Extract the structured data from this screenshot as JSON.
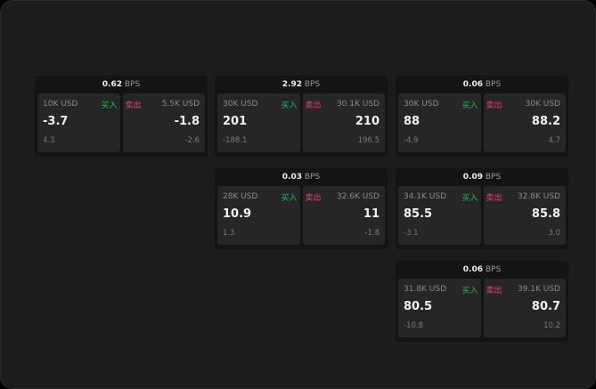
{
  "unit_label": "BPS",
  "buy_label": "买入",
  "sell_label": "卖出",
  "colors": {
    "buy": "#2fb45f",
    "sell": "#e0457a"
  },
  "panels": [
    {
      "bps": "0.62",
      "buy": {
        "size": "10K USD",
        "price": "-3.7",
        "change": "4.3"
      },
      "sell": {
        "size": "5.5K USD",
        "price": "-1.8",
        "change": "-2.6"
      }
    },
    {
      "bps": "2.92",
      "buy": {
        "size": "30K USD",
        "price": "201",
        "change": "-188.1"
      },
      "sell": {
        "size": "30.1K USD",
        "price": "210",
        "change": "196.5"
      }
    },
    {
      "bps": "0.06",
      "buy": {
        "size": "30K USD",
        "price": "88",
        "change": "-4.9"
      },
      "sell": {
        "size": "30K USD",
        "price": "88.2",
        "change": "4.7"
      }
    },
    {
      "bps": "0.03",
      "buy": {
        "size": "28K USD",
        "price": "10.9",
        "change": "1.3"
      },
      "sell": {
        "size": "32.6K USD",
        "price": "11",
        "change": "-1.8"
      }
    },
    {
      "bps": "0.09",
      "buy": {
        "size": "34.1K USD",
        "price": "85.5",
        "change": "-3.1"
      },
      "sell": {
        "size": "32.8K USD",
        "price": "85.8",
        "change": "3.0"
      }
    },
    {
      "bps": "0.06",
      "buy": {
        "size": "31.8K USD",
        "price": "80.5",
        "change": "-10.8"
      },
      "sell": {
        "size": "39.1K USD",
        "price": "80.7",
        "change": "10.2"
      }
    }
  ]
}
